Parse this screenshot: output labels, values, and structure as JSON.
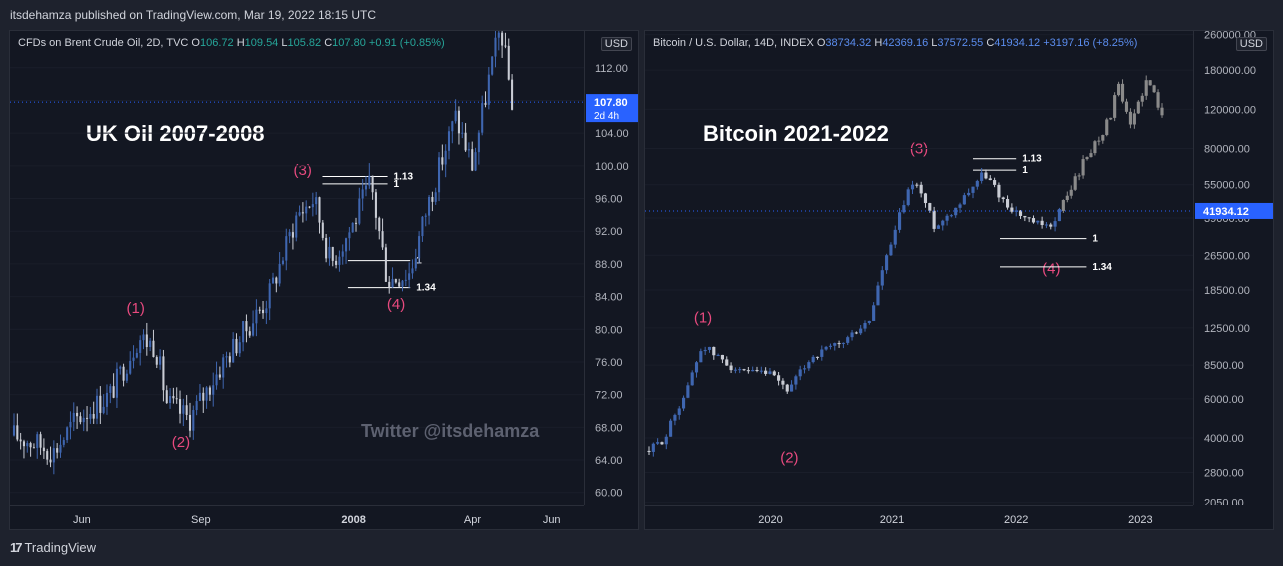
{
  "header": {
    "published": "itsdehamza published on TradingView.com, Mar 19, 2022 18:15 UTC"
  },
  "footer": {
    "brand": "TradingView",
    "logo_icon": "tradingview-logo-icon"
  },
  "colors": {
    "up": "#3f66b0",
    "down": "#c9ccd4",
    "projection": "#8a8a8a",
    "wave_label": "#e84a7f",
    "price_tag": "#2962ff",
    "bg": "#131722"
  },
  "watermark": "Twitter @itsdehamza",
  "chart_data": [
    {
      "type": "candlestick",
      "legend": {
        "symbol": "CFDs on Brent Crude Oil, 2D, TVC",
        "o_label": "O",
        "o": "106.72",
        "h_label": "H",
        "h": "109.54",
        "l_label": "L",
        "l": "105.82",
        "c_label": "C",
        "c": "107.80",
        "chg": "+0.91 (+0.85%)"
      },
      "currency": "USD",
      "title": "UK Oil 2007-2008",
      "scale": "linear",
      "ylim": [
        58.5,
        116.5
      ],
      "y_ticks": [
        "112.00",
        "108.00",
        "104.00",
        "100.00",
        "96.00",
        "92.00",
        "88.00",
        "84.00",
        "80.00",
        "76.00",
        "72.00",
        "68.00",
        "64.00",
        "60.00"
      ],
      "x_ticks": [
        {
          "label": "Jun",
          "t": 0.12
        },
        {
          "label": "Sep",
          "t": 0.33
        },
        {
          "label": "2008",
          "t": 0.6,
          "bold": true
        },
        {
          "label": "Apr",
          "t": 0.81
        },
        {
          "label": "Jun",
          "t": 0.95
        }
      ],
      "last_price": {
        "value": 107.8,
        "label": "107.80",
        "sub": "2d 4h"
      },
      "anchors": [
        [
          0,
          67
        ],
        [
          0.04,
          66
        ],
        [
          0.07,
          65
        ],
        [
          0.11,
          69
        ],
        [
          0.17,
          72
        ],
        [
          0.22,
          79
        ],
        [
          0.25,
          78
        ],
        [
          0.27,
          71
        ],
        [
          0.31,
          69
        ],
        [
          0.37,
          76
        ],
        [
          0.42,
          81
        ],
        [
          0.45,
          84
        ],
        [
          0.5,
          94
        ],
        [
          0.53,
          96
        ],
        [
          0.56,
          88
        ],
        [
          0.6,
          93
        ],
        [
          0.63,
          98
        ],
        [
          0.66,
          86
        ],
        [
          0.7,
          87
        ],
        [
          0.73,
          95
        ],
        [
          0.78,
          106
        ],
        [
          0.81,
          100
        ],
        [
          0.84,
          111
        ],
        [
          0.86,
          117
        ],
        [
          0.88,
          107.8
        ]
      ],
      "projected": [],
      "waves": [
        {
          "text": "(1)",
          "t": 0.215,
          "v": 82
        },
        {
          "text": "(2)",
          "t": 0.295,
          "v": 65.6
        },
        {
          "text": "(3)",
          "t": 0.51,
          "v": 98.9
        },
        {
          "text": "(4)",
          "t": 0.675,
          "v": 82.5
        }
      ],
      "fib_levels": [
        {
          "label": "1.13",
          "v": 98.7,
          "t0": 0.545,
          "t1": 0.66
        },
        {
          "label": "1",
          "v": 97.8,
          "t0": 0.545,
          "t1": 0.66
        },
        {
          "label": "1",
          "v": 88.4,
          "t0": 0.59,
          "t1": 0.7
        },
        {
          "label": "1.34",
          "v": 85.1,
          "t0": 0.59,
          "t1": 0.7
        }
      ]
    },
    {
      "type": "candlestick",
      "legend": {
        "symbol": "Bitcoin / U.S. Dollar, 14D, INDEX",
        "o_label": "O",
        "o": "38734.32",
        "h_label": "H",
        "h": "42369.16",
        "l_label": "L",
        "l": "37572.55",
        "c_label": "C",
        "c": "41934.12",
        "chg": "+3197.16 (+8.25%)"
      },
      "currency": "USD",
      "title": "Bitcoin 2021-2022",
      "scale": "log",
      "ylim": [
        2000,
        270000
      ],
      "y_ticks": [
        "260000.00",
        "180000.00",
        "120000.00",
        "80000.00",
        "55000.00",
        "39000.00",
        "26500.00",
        "18500.00",
        "12500.00",
        "8500.00",
        "6000.00",
        "4000.00",
        "2800.00",
        "2050.00"
      ],
      "x_ticks": [
        {
          "label": "2020",
          "t": 0.225
        },
        {
          "label": "2021",
          "t": 0.45
        },
        {
          "label": "2022",
          "t": 0.68
        },
        {
          "label": "2023",
          "t": 0.91
        }
      ],
      "last_price": {
        "value": 41934.12,
        "label": "41934.12",
        "sub": ""
      },
      "anchors": [
        [
          0,
          3500
        ],
        [
          0.03,
          4000
        ],
        [
          0.07,
          6500
        ],
        [
          0.1,
          10500
        ],
        [
          0.12,
          9500
        ],
        [
          0.17,
          7800
        ],
        [
          0.22,
          7800
        ],
        [
          0.26,
          6500
        ],
        [
          0.3,
          9200
        ],
        [
          0.36,
          10800
        ],
        [
          0.41,
          13500
        ],
        [
          0.45,
          30000
        ],
        [
          0.49,
          58000
        ],
        [
          0.53,
          35000
        ],
        [
          0.57,
          44000
        ],
        [
          0.62,
          62000
        ],
        [
          0.66,
          45000
        ],
        [
          0.7,
          38000
        ],
        [
          0.74,
          35000
        ],
        [
          0.76,
          41934
        ]
      ],
      "projected": [
        [
          0.76,
          41934
        ],
        [
          0.78,
          52000
        ],
        [
          0.82,
          80000
        ],
        [
          0.85,
          105000
        ],
        [
          0.87,
          150000
        ],
        [
          0.89,
          95000
        ],
        [
          0.92,
          160000
        ],
        [
          0.95,
          120000
        ]
      ],
      "waves": [
        {
          "text": "(1)",
          "t": 0.1,
          "v": 13200
        },
        {
          "text": "(2)",
          "t": 0.26,
          "v": 3100
        },
        {
          "text": "(3)",
          "t": 0.5,
          "v": 76000
        },
        {
          "text": "(4)",
          "t": 0.745,
          "v": 22000
        }
      ],
      "fib_levels": [
        {
          "label": "1.13",
          "v": 72000,
          "t0": 0.6,
          "t1": 0.68
        },
        {
          "label": "1",
          "v": 64000,
          "t0": 0.6,
          "t1": 0.68
        },
        {
          "label": "1",
          "v": 31500,
          "t0": 0.65,
          "t1": 0.81
        },
        {
          "label": "1.34",
          "v": 23500,
          "t0": 0.65,
          "t1": 0.81
        }
      ]
    }
  ]
}
